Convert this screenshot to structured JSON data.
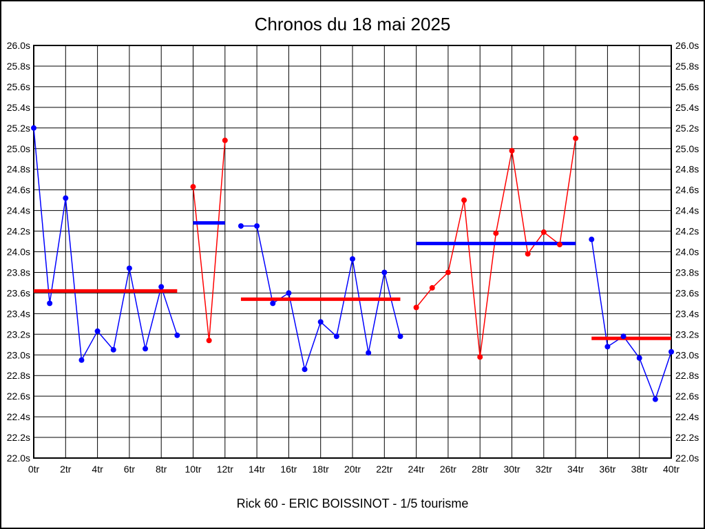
{
  "window": {
    "background_color": "#ffffff",
    "border_color": "#000000"
  },
  "chart_data": {
    "type": "line",
    "title": "Chronos du 18 mai 2025",
    "subtitle": "Rick 60 - ERIC BOISSINOT - 1/5 tourisme",
    "x_unit": "tr",
    "y_unit": "s",
    "xlim": [
      0,
      40
    ],
    "ylim": [
      22.0,
      26.0
    ],
    "x_tick_step": 2,
    "y_tick_step": 0.2,
    "grid": true,
    "legend_position": "none",
    "colors": {
      "blue_series": "#0000ff",
      "red_series": "#ff0000",
      "grid": "#000000",
      "text": "#000000"
    },
    "x_tick_labels": [
      "0tr",
      "2tr",
      "4tr",
      "6tr",
      "8tr",
      "10tr",
      "12tr",
      "14tr",
      "16tr",
      "18tr",
      "20tr",
      "22tr",
      "24tr",
      "26tr",
      "28tr",
      "30tr",
      "32tr",
      "34tr",
      "36tr",
      "38tr",
      "40tr"
    ],
    "y_tick_labels": [
      "26.0s",
      "25.8s",
      "25.6s",
      "25.4s",
      "25.2s",
      "25.0s",
      "24.8s",
      "24.6s",
      "24.4s",
      "24.2s",
      "24.0s",
      "23.8s",
      "23.6s",
      "23.4s",
      "23.2s",
      "23.0s",
      "22.8s",
      "22.6s",
      "22.4s",
      "22.2s",
      "22.0s"
    ],
    "segments": [
      {
        "name": "stint-1",
        "color": "#0000ff",
        "avg_line_color": "#ff0000",
        "start_lap": 0,
        "values": [
          25.2,
          23.5,
          24.52,
          22.95,
          23.23,
          23.05,
          23.84,
          23.06,
          23.66,
          23.19
        ],
        "average": 23.62
      },
      {
        "name": "stint-2",
        "color": "#ff0000",
        "avg_line_color": "#0000ff",
        "start_lap": 10,
        "values": [
          24.63,
          23.14,
          25.08
        ],
        "average": 24.28
      },
      {
        "name": "stint-3",
        "color": "#0000ff",
        "avg_line_color": "#ff0000",
        "start_lap": 13,
        "values": [
          24.25,
          24.25,
          23.5,
          23.6,
          22.86,
          23.32,
          23.18,
          23.93,
          23.02,
          23.8,
          23.18
        ],
        "average": 23.54
      },
      {
        "name": "stint-4",
        "color": "#ff0000",
        "avg_line_color": "#0000ff",
        "start_lap": 24,
        "values": [
          23.46,
          23.65,
          23.8,
          24.5,
          22.98,
          24.18,
          24.98,
          23.98,
          24.19,
          24.07,
          25.1
        ],
        "average": 24.08
      },
      {
        "name": "stint-5",
        "color": "#0000ff",
        "avg_line_color": "#ff0000",
        "start_lap": 35,
        "values": [
          24.12,
          23.08,
          23.18,
          22.97,
          22.57,
          23.03
        ],
        "average": 23.16
      }
    ]
  }
}
